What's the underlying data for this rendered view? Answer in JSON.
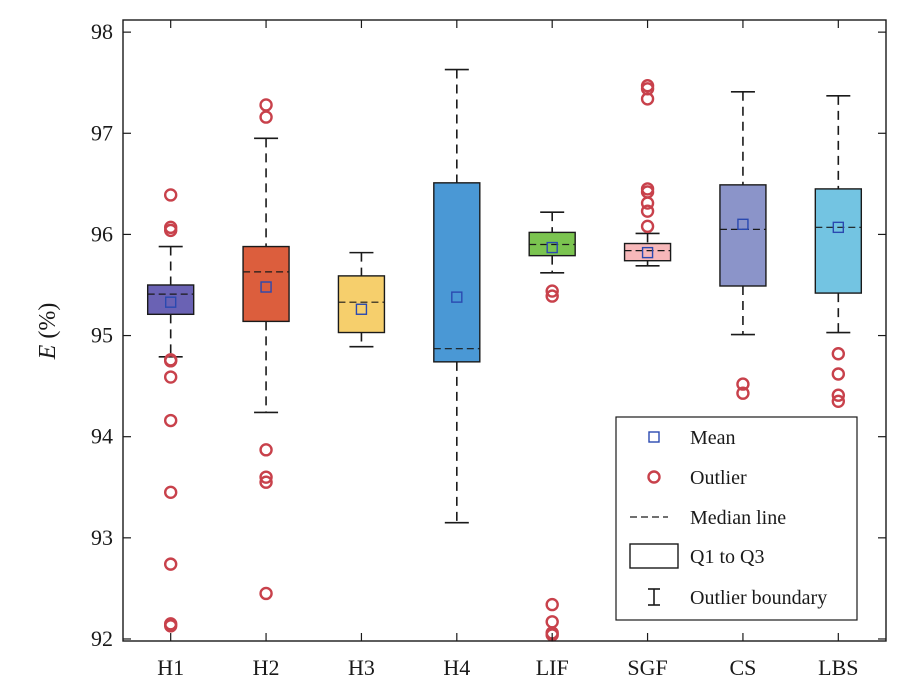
{
  "chart_data": {
    "type": "box",
    "ylabel": {
      "symbol": "E",
      "unit": " (%)"
    },
    "xlabel": "",
    "ylim": [
      91.98,
      98.12
    ],
    "yticks": [
      92,
      93,
      94,
      95,
      96,
      97,
      98
    ],
    "grid": false,
    "legend_position": "bottom-right",
    "categories": [
      "H1",
      "H2",
      "H3",
      "H4",
      "LIF",
      "SGF",
      "CS",
      "LBS"
    ],
    "colors": [
      "#6a62b4",
      "#dc5e3d",
      "#f6cf6c",
      "#4a98d5",
      "#7bc450",
      "#f7b8ba",
      "#8b94c9",
      "#73c4e2"
    ],
    "boxes": [
      {
        "q1": 95.21,
        "q3": 95.5,
        "median": 95.41,
        "mean": 95.33,
        "whisker_low": 94.79,
        "whisker_high": 95.88,
        "outliers": [
          96.39,
          96.07,
          96.04,
          94.76,
          94.75,
          94.59,
          94.16,
          93.45,
          92.74,
          92.15,
          92.13
        ]
      },
      {
        "q1": 95.14,
        "q3": 95.88,
        "median": 95.63,
        "mean": 95.48,
        "whisker_low": 94.24,
        "whisker_high": 96.95,
        "outliers": [
          97.28,
          97.16,
          93.87,
          93.6,
          93.55,
          92.45
        ]
      },
      {
        "q1": 95.03,
        "q3": 95.59,
        "median": 95.33,
        "mean": 95.26,
        "whisker_low": 94.89,
        "whisker_high": 95.82,
        "outliers": []
      },
      {
        "q1": 94.74,
        "q3": 96.51,
        "median": 94.87,
        "mean": 95.38,
        "whisker_low": 93.15,
        "whisker_high": 97.63,
        "outliers": []
      },
      {
        "q1": 95.79,
        "q3": 96.02,
        "median": 95.9,
        "mean": 95.87,
        "whisker_low": 95.62,
        "whisker_high": 96.22,
        "outliers": [
          95.44,
          95.39,
          92.34,
          92.17,
          92.06,
          92.04
        ]
      },
      {
        "q1": 95.74,
        "q3": 95.91,
        "median": 95.84,
        "mean": 95.82,
        "whisker_low": 95.69,
        "whisker_high": 96.01,
        "outliers": [
          97.47,
          97.44,
          97.34,
          96.45,
          96.42,
          96.31,
          96.23,
          96.08
        ]
      },
      {
        "q1": 95.49,
        "q3": 96.49,
        "median": 96.05,
        "mean": 96.1,
        "whisker_low": 95.01,
        "whisker_high": 97.41,
        "outliers": [
          94.52,
          94.43
        ]
      },
      {
        "q1": 95.42,
        "q3": 96.45,
        "median": 96.07,
        "mean": 96.07,
        "whisker_low": 95.03,
        "whisker_high": 97.37,
        "outliers": [
          94.82,
          94.62,
          94.41,
          94.35
        ]
      }
    ],
    "legend": [
      {
        "key": "mean",
        "label": "Mean"
      },
      {
        "key": "outlier",
        "label": "Outlier"
      },
      {
        "key": "median",
        "label": "Median line"
      },
      {
        "key": "box",
        "label": "Q1 to Q3"
      },
      {
        "key": "whisker",
        "label": "Outlier boundary"
      }
    ],
    "style": {
      "mean_marker_color": "#2a49b0",
      "outlier_color": "#c8414b",
      "line_color": "#1a1a1a"
    }
  }
}
